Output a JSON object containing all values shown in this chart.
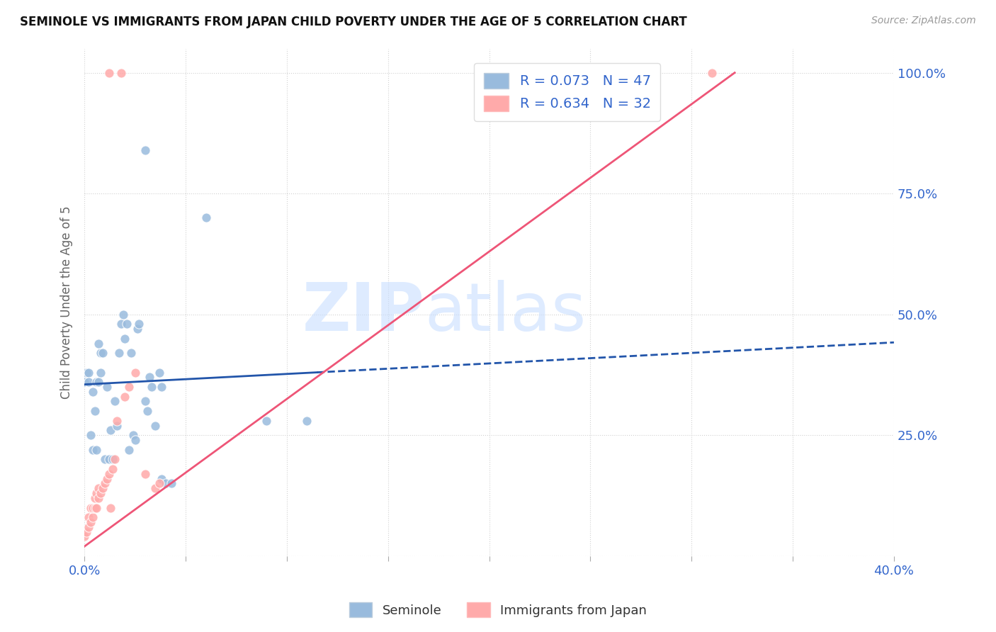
{
  "title": "SEMINOLE VS IMMIGRANTS FROM JAPAN CHILD POVERTY UNDER THE AGE OF 5 CORRELATION CHART",
  "source": "Source: ZipAtlas.com",
  "ylabel_label": "Child Poverty Under the Age of 5",
  "x_min": 0.0,
  "x_max": 0.4,
  "y_min": 0.0,
  "y_max": 1.05,
  "seminole_color": "#99BBDD",
  "japan_color": "#FFAAAA",
  "seminole_line_color": "#2255AA",
  "japan_line_color": "#EE5577",
  "seminole_R": 0.073,
  "seminole_N": 47,
  "japan_R": 0.634,
  "japan_N": 32,
  "legend_text_color": "#3366CC",
  "background_color": "#FFFFFF",
  "grid_color": "#CCCCCC",
  "seminole_scatter": [
    [
      0.0,
      0.36
    ],
    [
      0.001,
      0.38
    ],
    [
      0.002,
      0.38
    ],
    [
      0.002,
      0.36
    ],
    [
      0.003,
      0.25
    ],
    [
      0.004,
      0.22
    ],
    [
      0.004,
      0.34
    ],
    [
      0.005,
      0.3
    ],
    [
      0.006,
      0.22
    ],
    [
      0.006,
      0.36
    ],
    [
      0.007,
      0.36
    ],
    [
      0.007,
      0.44
    ],
    [
      0.008,
      0.38
    ],
    [
      0.008,
      0.42
    ],
    [
      0.009,
      0.42
    ],
    [
      0.01,
      0.2
    ],
    [
      0.011,
      0.35
    ],
    [
      0.012,
      0.2
    ],
    [
      0.013,
      0.26
    ],
    [
      0.014,
      0.2
    ],
    [
      0.015,
      0.32
    ],
    [
      0.016,
      0.27
    ],
    [
      0.017,
      0.42
    ],
    [
      0.018,
      0.48
    ],
    [
      0.019,
      0.5
    ],
    [
      0.02,
      0.45
    ],
    [
      0.021,
      0.48
    ],
    [
      0.022,
      0.22
    ],
    [
      0.023,
      0.42
    ],
    [
      0.024,
      0.25
    ],
    [
      0.025,
      0.24
    ],
    [
      0.026,
      0.47
    ],
    [
      0.027,
      0.48
    ],
    [
      0.03,
      0.32
    ],
    [
      0.031,
      0.3
    ],
    [
      0.032,
      0.37
    ],
    [
      0.033,
      0.35
    ],
    [
      0.035,
      0.27
    ],
    [
      0.037,
      0.38
    ],
    [
      0.038,
      0.35
    ],
    [
      0.038,
      0.16
    ],
    [
      0.04,
      0.15
    ],
    [
      0.043,
      0.15
    ],
    [
      0.03,
      0.84
    ],
    [
      0.06,
      0.7
    ],
    [
      0.09,
      0.28
    ],
    [
      0.11,
      0.28
    ]
  ],
  "japan_scatter": [
    [
      0.0,
      0.04
    ],
    [
      0.001,
      0.05
    ],
    [
      0.002,
      0.06
    ],
    [
      0.002,
      0.08
    ],
    [
      0.003,
      0.07
    ],
    [
      0.003,
      0.1
    ],
    [
      0.004,
      0.08
    ],
    [
      0.004,
      0.1
    ],
    [
      0.005,
      0.1
    ],
    [
      0.005,
      0.12
    ],
    [
      0.006,
      0.1
    ],
    [
      0.006,
      0.13
    ],
    [
      0.007,
      0.12
    ],
    [
      0.007,
      0.14
    ],
    [
      0.008,
      0.13
    ],
    [
      0.009,
      0.14
    ],
    [
      0.01,
      0.15
    ],
    [
      0.011,
      0.16
    ],
    [
      0.012,
      0.17
    ],
    [
      0.013,
      0.1
    ],
    [
      0.014,
      0.18
    ],
    [
      0.015,
      0.2
    ],
    [
      0.016,
      0.28
    ],
    [
      0.02,
      0.33
    ],
    [
      0.022,
      0.35
    ],
    [
      0.025,
      0.38
    ],
    [
      0.03,
      0.17
    ],
    [
      0.035,
      0.14
    ],
    [
      0.037,
      0.15
    ],
    [
      0.012,
      1.0
    ],
    [
      0.018,
      1.0
    ],
    [
      0.31,
      1.0
    ]
  ],
  "sem_line_x0": 0.0,
  "sem_line_x1": 0.115,
  "sem_line_xend": 0.4,
  "sem_line_y_at_x0": 0.355,
  "sem_line_y_at_x1": 0.38,
  "jap_line_x0": 0.0,
  "jap_line_y0": 0.02,
  "jap_line_slope": 3.05
}
